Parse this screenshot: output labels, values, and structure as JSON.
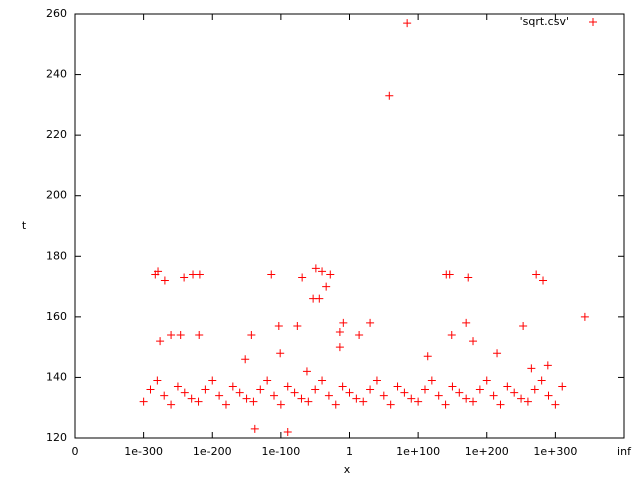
{
  "chart_data": {
    "type": "scatter",
    "xlabel": "x",
    "ylabel": "t",
    "xlim": [
      -400,
      400
    ],
    "xticks": [
      {
        "value": -400,
        "label": "0"
      },
      {
        "value": -300,
        "label": "1e-300"
      },
      {
        "value": -200,
        "label": "1e-200"
      },
      {
        "value": -100,
        "label": "1e-100"
      },
      {
        "value": 0,
        "label": "1"
      },
      {
        "value": 100,
        "label": "1e+100"
      },
      {
        "value": 200,
        "label": "1e+200"
      },
      {
        "value": 300,
        "label": "1e+300"
      },
      {
        "value": 400,
        "label": "inf"
      }
    ],
    "ylim": [
      120,
      260
    ],
    "yticks": [
      120,
      140,
      160,
      180,
      200,
      220,
      240,
      260
    ],
    "legend": "top-right",
    "x": [
      84,
      58,
      -283,
      -279,
      -269,
      -276,
      -260,
      -246,
      -241,
      -228,
      -218,
      -219,
      -114,
      -143,
      -152,
      -138,
      -90,
      -101,
      -103,
      -76,
      -69,
      -62,
      -49,
      -40,
      -53,
      -44,
      -34,
      -28,
      -14,
      -9,
      -14,
      14,
      30,
      141,
      146,
      149,
      173,
      170,
      180,
      114,
      215,
      253,
      272,
      282,
      343,
      289,
      265,
      -300,
      -290,
      -280,
      -270,
      -260,
      -250,
      -240,
      -230,
      -220,
      -210,
      -200,
      -190,
      -180,
      -170,
      -160,
      -150,
      -140,
      -130,
      -120,
      -110,
      -100,
      -90,
      -80,
      -70,
      -60,
      -50,
      -40,
      -30,
      -20,
      -10,
      0,
      10,
      20,
      30,
      40,
      50,
      60,
      70,
      80,
      90,
      100,
      110,
      120,
      130,
      140,
      150,
      160,
      170,
      180,
      190,
      200,
      210,
      220,
      230,
      240,
      250,
      260,
      270,
      280,
      290,
      300,
      310
    ],
    "series": [
      {
        "name": "'sqrt.csv'",
        "color": "#ff0000",
        "values": [
          257,
          233,
          174,
          175,
          172,
          152,
          154,
          154,
          173,
          174,
          174,
          154,
          174,
          154,
          146,
          123,
          122,
          148,
          157,
          157,
          173,
          142,
          176,
          175,
          166,
          166,
          170,
          174,
          155,
          158,
          150,
          154,
          158,
          174,
          174,
          154,
          173,
          158,
          152,
          147,
          148,
          157,
          174,
          172,
          160,
          144,
          143,
          132,
          136,
          139,
          134,
          131,
          137,
          135,
          133,
          132,
          136,
          139,
          134,
          131,
          137,
          135,
          133,
          132,
          136,
          139,
          134,
          131,
          137,
          135,
          133,
          132,
          136,
          139,
          134,
          131,
          137,
          135,
          133,
          132,
          136,
          139,
          134,
          131,
          137,
          135,
          133,
          132,
          136,
          139,
          134,
          131,
          137,
          135,
          133,
          132,
          136,
          139,
          134,
          131,
          137,
          135,
          133,
          132,
          136,
          139,
          134,
          131,
          137
        ]
      }
    ]
  }
}
